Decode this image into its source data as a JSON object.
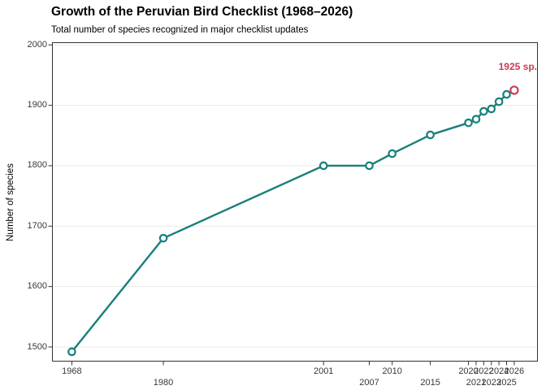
{
  "chart_data": {
    "type": "line",
    "title": "Growth of the Peruvian Bird Checklist (1968–2026)",
    "subtitle": "Total number of species recognized in major checklist updates",
    "xlabel": "",
    "ylabel": "Number of species",
    "legend": "none",
    "grid": "horizontal-major-only",
    "xlim": [
      1965.4,
      2029.1
    ],
    "ylim": [
      1475.8,
      2004.4
    ],
    "series": [
      {
        "name": "Species recognized",
        "x": [
          1968,
          1980,
          2001,
          2007,
          2010,
          2015,
          2020,
          2021,
          2022,
          2023,
          2024,
          2025,
          2026
        ],
        "y": [
          1492,
          1680,
          1800,
          1800,
          1820,
          1851,
          1871,
          1877,
          1890,
          1894,
          1906,
          1918,
          1925
        ]
      }
    ],
    "highlight_point": {
      "x": 2026,
      "y": 1925
    },
    "annotation": {
      "text": "1925 sp.",
      "x": 2026,
      "y": 1925
    },
    "yticks": [
      1500,
      1600,
      1700,
      1800,
      1900,
      2000
    ],
    "xticks": [
      {
        "label": "1968",
        "value": 1968,
        "row": 1
      },
      {
        "label": "1980",
        "value": 1980,
        "row": 2
      },
      {
        "label": "2001",
        "value": 2001,
        "row": 1
      },
      {
        "label": "2007",
        "value": 2007,
        "row": 2
      },
      {
        "label": "2010",
        "value": 2010,
        "row": 1
      },
      {
        "label": "2015",
        "value": 2015,
        "row": 2
      },
      {
        "label": "2020",
        "value": 2020,
        "row": 1
      },
      {
        "label": "2021",
        "value": 2021,
        "row": 2
      },
      {
        "label": "2022",
        "value": 2022,
        "row": 1
      },
      {
        "label": "2023",
        "value": 2023,
        "row": 2
      },
      {
        "label": "2024",
        "value": 2024,
        "row": 1
      },
      {
        "label": "2025",
        "value": 2025,
        "row": 2
      },
      {
        "label": "2026",
        "value": 2026,
        "row": 1
      }
    ],
    "colors": {
      "line": "#17807a",
      "marker_fill": "#ffffff",
      "highlight": "#c93b54",
      "annotation": "#c93b54",
      "grid": "#e9e9e9",
      "panel_border": "#333333",
      "tick": "#333333",
      "tick_label": "#383838",
      "text": "#000000",
      "background": "#ffffff"
    }
  }
}
